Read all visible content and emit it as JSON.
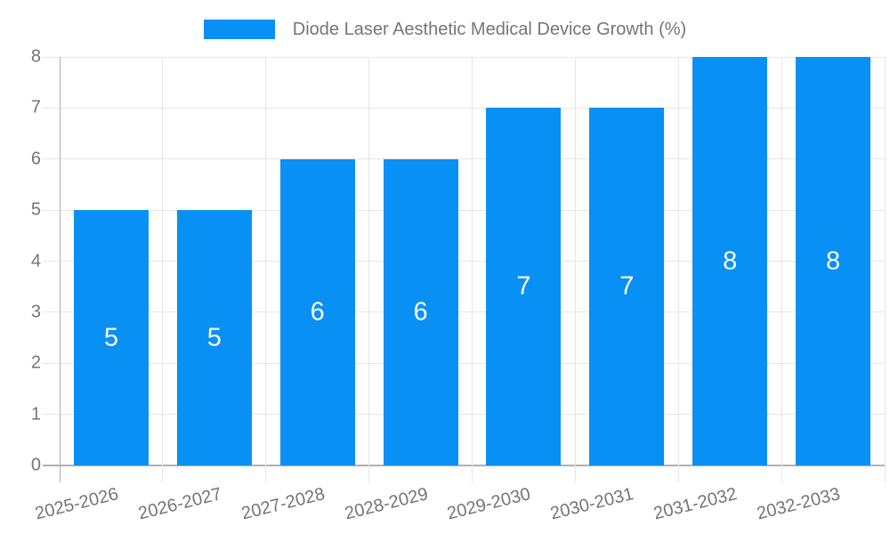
{
  "chart_data": {
    "type": "bar",
    "title": "Diode Laser Aesthetic Medical Device Growth (%)",
    "categories": [
      "2025-2026",
      "2026-2027",
      "2027-2028",
      "2028-2029",
      "2029-2030",
      "2030-2031",
      "2031-2032",
      "2032-2033"
    ],
    "values": [
      5,
      5,
      6,
      6,
      7,
      7,
      8,
      8
    ],
    "value_labels": [
      "5",
      "5",
      "6",
      "6",
      "7",
      "7",
      "8",
      "8"
    ],
    "xlabel": "",
    "ylabel": "",
    "ylim": [
      0,
      8
    ],
    "yticks": [
      0,
      1,
      2,
      3,
      4,
      5,
      6,
      7,
      8
    ],
    "grid": true,
    "legend_position": "top-center",
    "colors": {
      "bar": "#0890F5",
      "gridline": "#e6e6e6",
      "axis": "#b0b0b0",
      "label_text": "#757575",
      "value_label_text": "#ffffff",
      "background": "#ffffff"
    }
  }
}
